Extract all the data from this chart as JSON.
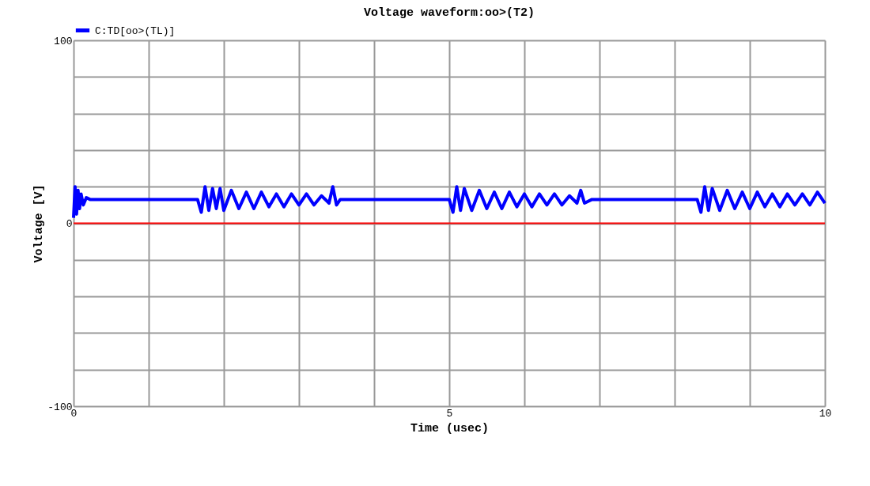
{
  "chart_data": {
    "type": "line",
    "title": "Voltage waveform:oo>(T2)",
    "xlabel": "Time (usec)",
    "ylabel": "Voltage [V]",
    "xlim": [
      0,
      10
    ],
    "ylim": [
      -100,
      100
    ],
    "xticks": [
      0,
      {
        "value": 1,
        "label": null
      },
      {
        "value": 2,
        "label": null
      },
      {
        "value": 3,
        "label": null
      },
      {
        "value": 4,
        "label": null
      },
      5,
      {
        "value": 6,
        "label": null
      },
      {
        "value": 7,
        "label": null
      },
      {
        "value": 8,
        "label": null
      },
      {
        "value": 9,
        "label": null
      },
      10
    ],
    "yticks": [
      -100,
      {
        "value": -80,
        "label": null
      },
      {
        "value": -60,
        "label": null
      },
      {
        "value": -40,
        "label": null
      },
      {
        "value": -20,
        "label": null
      },
      0,
      {
        "value": 20,
        "label": null
      },
      {
        "value": 40,
        "label": null
      },
      {
        "value": 60,
        "label": null
      },
      {
        "value": 80,
        "label": null
      },
      100
    ],
    "grid": true,
    "legend": "top left",
    "ref_lines": [
      {
        "axis": "y",
        "value": 0,
        "color": "#ff0000"
      }
    ],
    "series": [
      {
        "name": "C:TD[oo>(TL)]",
        "color": "#0000ff",
        "x": [
          0,
          0.02,
          0.04,
          0.06,
          0.08,
          0.1,
          0.13,
          0.17,
          0.22,
          1.65,
          1.7,
          1.75,
          1.8,
          1.85,
          1.9,
          1.95,
          2.0,
          2.1,
          2.2,
          2.3,
          2.4,
          2.5,
          2.6,
          2.7,
          2.8,
          2.9,
          3.0,
          3.1,
          3.2,
          3.3,
          3.4,
          3.45,
          3.5,
          3.55,
          5.0,
          5.05,
          5.1,
          5.15,
          5.2,
          5.3,
          5.4,
          5.5,
          5.6,
          5.7,
          5.8,
          5.9,
          6.0,
          6.1,
          6.2,
          6.3,
          6.4,
          6.5,
          6.6,
          6.7,
          6.75,
          6.8,
          6.9,
          8.3,
          8.35,
          8.4,
          8.45,
          8.5,
          8.6,
          8.7,
          8.8,
          8.9,
          9.0,
          9.1,
          9.2,
          9.3,
          9.4,
          9.5,
          9.6,
          9.7,
          9.8,
          9.9,
          10.0
        ],
        "values": [
          3,
          20,
          5,
          18,
          8,
          16,
          10,
          14,
          13,
          13,
          6,
          20,
          7,
          19,
          8,
          19,
          7,
          18,
          8,
          17,
          8,
          17,
          9,
          16,
          9,
          16,
          10,
          16,
          10,
          15,
          11,
          20,
          10,
          13,
          13,
          6,
          20,
          7,
          19,
          7,
          18,
          8,
          17,
          8,
          17,
          9,
          16,
          9,
          16,
          10,
          16,
          10,
          15,
          11,
          18,
          11,
          13,
          13,
          6,
          20,
          7,
          19,
          7,
          18,
          8,
          17,
          8,
          17,
          9,
          16,
          9,
          16,
          10,
          16,
          10,
          17,
          11
        ]
      }
    ]
  }
}
